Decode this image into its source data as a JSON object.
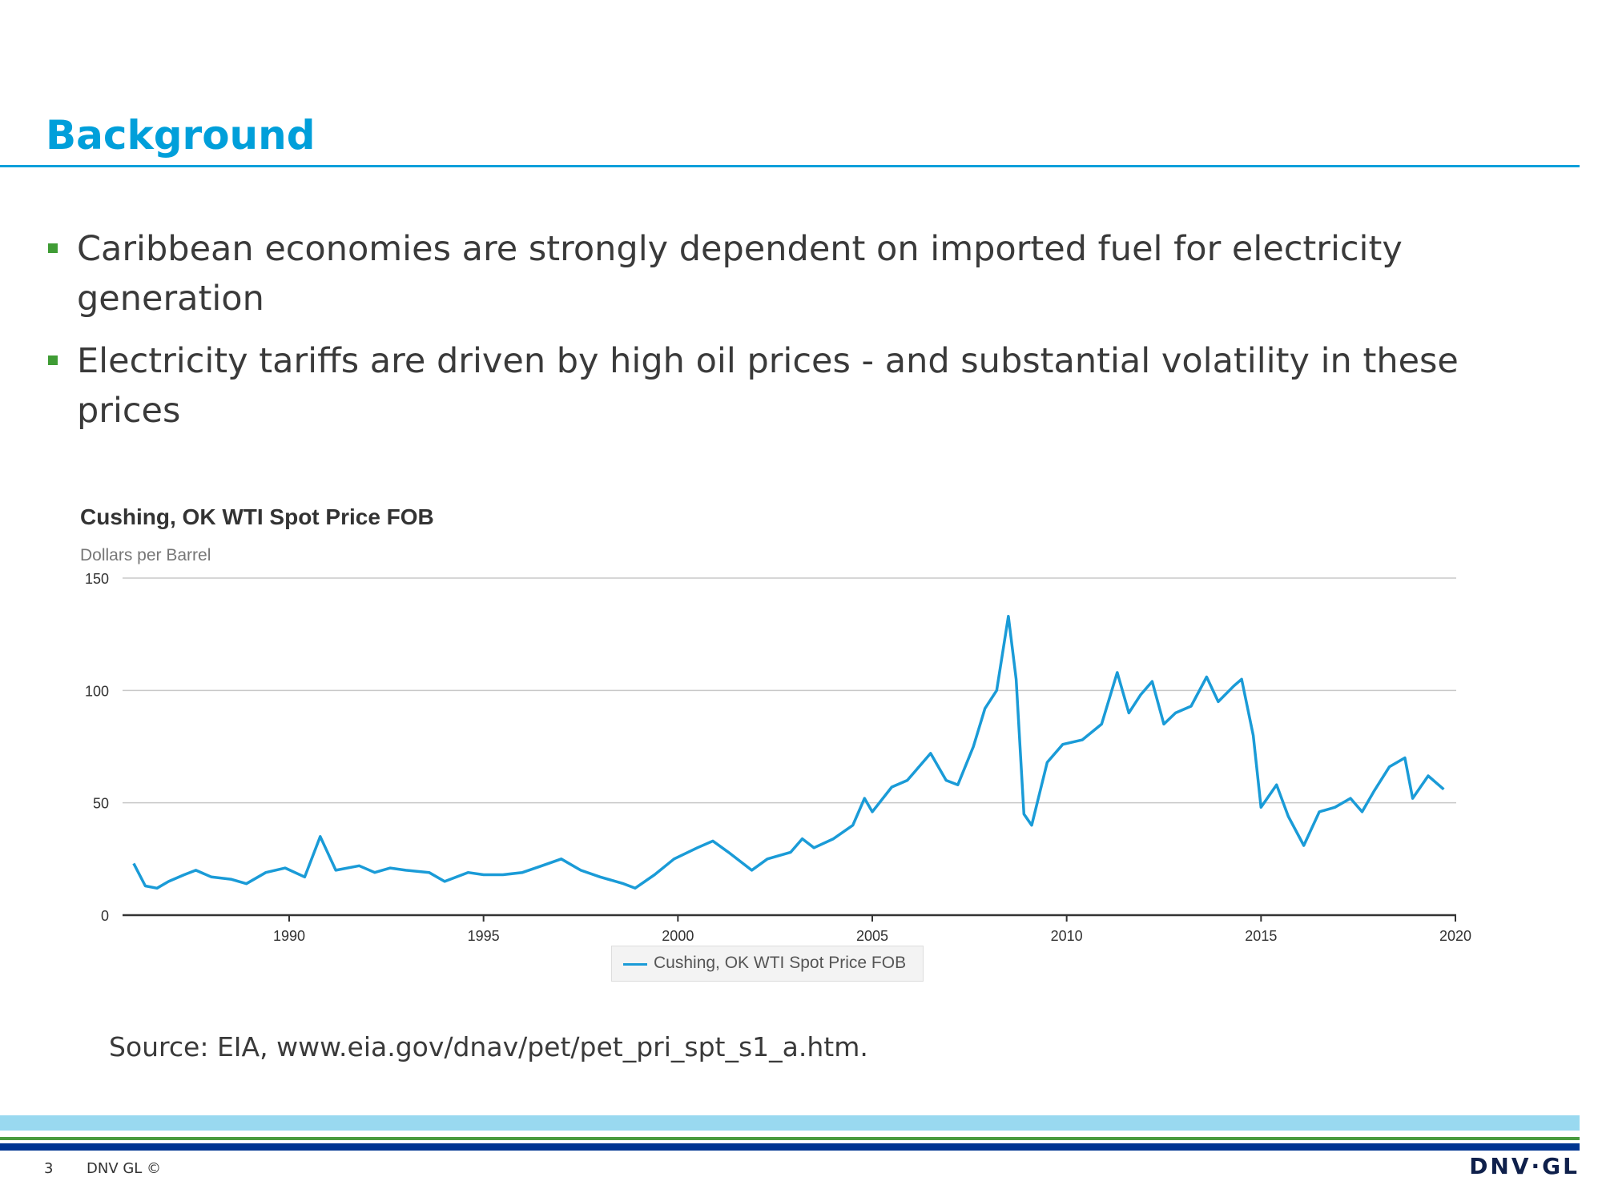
{
  "slide": {
    "title": "Background",
    "bullets": [
      "Caribbean economies are strongly dependent on imported fuel for electricity generation",
      "Electricity tariffs are driven by high oil prices - and substantial volatility in these prices"
    ],
    "source": "Source: EIA, www.eia.gov/dnav/pet/pet_pri_spt_s1_a.htm.",
    "page_number": "3",
    "copyright": "DNV GL ©",
    "logo": "DNV·GL"
  },
  "colors": {
    "accent": "#009fda",
    "bullet": "#3f9c35",
    "line": "#1a9bd7",
    "navy": "#003591"
  },
  "chart_data": {
    "type": "line",
    "title": "Cushing, OK WTI Spot Price FOB",
    "ylabel": "Dollars per Barrel",
    "xlabel": "",
    "ylim": [
      0,
      150
    ],
    "xlim": [
      1986,
      2020
    ],
    "yticks": [
      "0",
      "50",
      "100",
      "150"
    ],
    "xticks": [
      "1990",
      "1995",
      "2000",
      "2005",
      "2010",
      "2015",
      "2020"
    ],
    "grid": true,
    "legend": {
      "position": "bottom",
      "entries": [
        "Cushing, OK WTI Spot Price FOB"
      ]
    },
    "series": [
      {
        "name": "Cushing, OK WTI Spot Price FOB",
        "x": [
          1986.0,
          1986.3,
          1986.6,
          1986.9,
          1987.3,
          1987.6,
          1988.0,
          1988.5,
          1988.9,
          1989.4,
          1989.9,
          1990.4,
          1990.8,
          1991.2,
          1991.8,
          1992.2,
          1992.6,
          1993.0,
          1993.6,
          1994.0,
          1994.6,
          1995.0,
          1995.5,
          1996.0,
          1996.5,
          1997.0,
          1997.5,
          1998.0,
          1998.6,
          1998.9,
          1999.4,
          1999.9,
          2000.5,
          2000.9,
          2001.3,
          2001.9,
          2002.3,
          2002.9,
          2003.2,
          2003.5,
          2004.0,
          2004.5,
          2004.8,
          2005.0,
          2005.5,
          2005.9,
          2006.5,
          2006.9,
          2007.2,
          2007.6,
          2007.9,
          2008.2,
          2008.5,
          2008.7,
          2008.9,
          2009.1,
          2009.5,
          2009.9,
          2010.4,
          2010.9,
          2011.3,
          2011.6,
          2011.9,
          2012.2,
          2012.5,
          2012.8,
          2013.2,
          2013.6,
          2013.9,
          2014.3,
          2014.5,
          2014.8,
          2015.0,
          2015.4,
          2015.7,
          2016.1,
          2016.5,
          2016.9,
          2017.3,
          2017.6,
          2017.9,
          2018.3,
          2018.7,
          2018.9,
          2019.3,
          2019.7
        ],
        "values": [
          23,
          13,
          12,
          15,
          18,
          20,
          17,
          16,
          14,
          19,
          21,
          17,
          35,
          20,
          22,
          19,
          21,
          20,
          19,
          15,
          19,
          18,
          18,
          19,
          22,
          25,
          20,
          17,
          14,
          12,
          18,
          25,
          30,
          33,
          28,
          20,
          25,
          28,
          34,
          30,
          34,
          40,
          52,
          46,
          57,
          60,
          72,
          60,
          58,
          75,
          92,
          100,
          133,
          105,
          45,
          40,
          68,
          76,
          78,
          85,
          108,
          90,
          98,
          104,
          85,
          90,
          93,
          106,
          95,
          102,
          105,
          80,
          48,
          58,
          44,
          31,
          46,
          48,
          52,
          46,
          55,
          66,
          70,
          52,
          62,
          56
        ]
      }
    ]
  }
}
